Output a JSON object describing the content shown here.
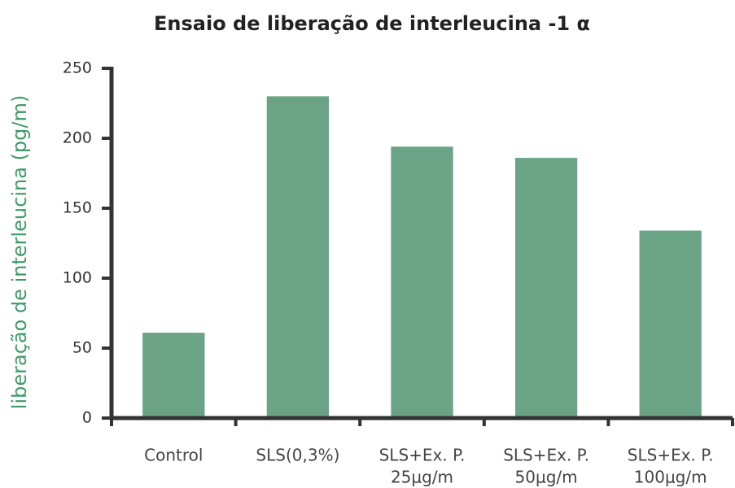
{
  "chart_data": {
    "type": "bar",
    "title": "Ensaio de liberação de interleucina -1 α",
    "y_label": "liberação de interleucina (pg/m)",
    "categories": [
      [
        "Control"
      ],
      [
        "SLS(0,3%)"
      ],
      [
        "SLS+Ex. P.",
        "25μg/m"
      ],
      [
        "SLS+Ex. P.",
        "50μg/m"
      ],
      [
        "SLS+Ex. P.",
        "100μg/m"
      ]
    ],
    "values": [
      61,
      230,
      194,
      186,
      134
    ],
    "color": "#6ba386",
    "ylim": [
      0,
      250
    ],
    "yticks": [
      0,
      50,
      100,
      150,
      200,
      250
    ],
    "grid": false
  }
}
